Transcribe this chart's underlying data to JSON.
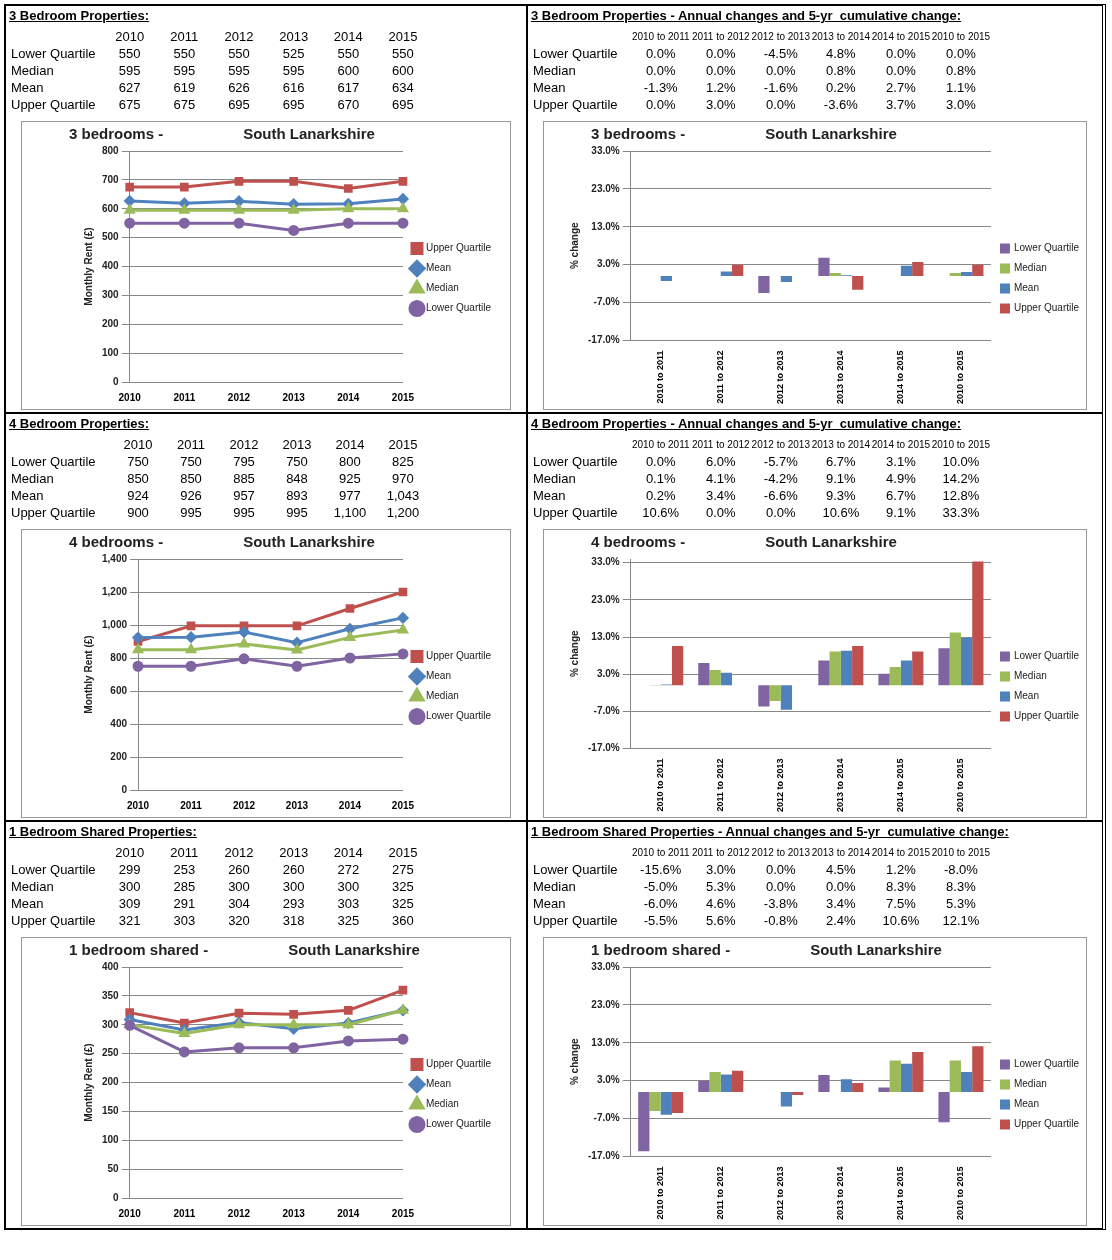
{
  "chart_data": [
    {
      "type": "line",
      "annotations": [
        "3 Bedroom Properties:"
      ],
      "title": "3 bedrooms -",
      "subtitle": "South Lanarkshire",
      "ylabel": "Monthly Rent (£)",
      "categories": [
        "2010",
        "2011",
        "2012",
        "2013",
        "2014",
        "2015"
      ],
      "ylim": [
        0,
        800
      ],
      "yticks": [
        0,
        100,
        200,
        300,
        400,
        500,
        600,
        700,
        800
      ],
      "grid": "y",
      "legend": "right",
      "data_labels": true,
      "series": [
        {
          "name": "Lower Quartile",
          "color": "#8064a2",
          "marker": "circle",
          "values": [
            550,
            550,
            550,
            525,
            550,
            550
          ],
          "value_labels": [
            "550",
            "550",
            "550",
            "525",
            "550",
            "550"
          ]
        },
        {
          "name": "Median",
          "color": "#9bbb59",
          "marker": "triangle",
          "values": [
            595,
            595,
            595,
            595,
            600,
            600
          ],
          "value_labels": [
            "595",
            "595",
            "595",
            "595",
            "600",
            "600"
          ]
        },
        {
          "name": "Mean",
          "color": "#4f81bd",
          "marker": "diamond",
          "values": [
            627,
            619,
            626,
            616,
            617,
            634
          ],
          "value_labels": [
            "627",
            "619",
            "626",
            "616",
            "617",
            "634"
          ]
        },
        {
          "name": "Upper Quartile",
          "color": "#c0504d",
          "marker": "square",
          "values": [
            675,
            675,
            695,
            695,
            670,
            695
          ],
          "value_labels": [
            "675",
            "675",
            "695",
            "695",
            "670",
            "695"
          ]
        }
      ]
    },
    {
      "type": "bar",
      "annotations": [
        "3 Bedroom Properties - Annual changes and 5-yr  cumulative change:"
      ],
      "title": "3 bedrooms -",
      "subtitle": "South Lanarkshire",
      "ylabel": "% change",
      "categories": [
        "2010 to 2011",
        "2011 to 2012",
        "2012 to 2013",
        "2013 to 2014",
        "2014 to 2015",
        "2010 to 2015"
      ],
      "ylim": [
        -17,
        33
      ],
      "yticks": [
        {
          "value": -17,
          "label": "-17.0%"
        },
        {
          "value": -7,
          "label": "-7.0%"
        },
        {
          "value": 3,
          "label": "3.0%"
        },
        {
          "value": 13,
          "label": "13.0%"
        },
        {
          "value": 23,
          "label": "23.0%"
        },
        {
          "value": 33,
          "label": "33.0%"
        }
      ],
      "grid": "y",
      "legend": "right",
      "data_labels": true,
      "series": [
        {
          "name": "Lower Quartile",
          "color": "#8064a2",
          "values": [
            0,
            0,
            -4.5,
            4.8,
            0,
            0
          ],
          "value_labels": [
            "0.0%",
            "0.0%",
            "-4.5%",
            "4.8%",
            "0.0%",
            "0.0%"
          ]
        },
        {
          "name": "Median",
          "color": "#9bbb59",
          "values": [
            0,
            0,
            0,
            0.8,
            0,
            0.8
          ],
          "value_labels": [
            "0.0%",
            "0.0%",
            "0.0%",
            "0.8%",
            "0.0%",
            "0.8%"
          ]
        },
        {
          "name": "Mean",
          "color": "#4f81bd",
          "values": [
            -1.3,
            1.2,
            -1.6,
            0.2,
            2.7,
            1.1
          ],
          "value_labels": [
            "-1.3%",
            "1.2%",
            "-1.6%",
            "0.2%",
            "2.7%",
            "1.1%"
          ]
        },
        {
          "name": "Upper Quartile",
          "color": "#c0504d",
          "values": [
            0,
            3.0,
            0,
            -3.6,
            3.7,
            3.0
          ],
          "value_labels": [
            "0.0%",
            "3.0%",
            "0.0%",
            "-3.6%",
            "3.7%",
            "3.0%"
          ]
        }
      ]
    },
    {
      "type": "line",
      "annotations": [
        "4 Bedroom Properties:"
      ],
      "title": "4 bedrooms -",
      "subtitle": "South Lanarkshire",
      "ylabel": "Monthly Rent (£)",
      "categories": [
        "2010",
        "2011",
        "2012",
        "2013",
        "2014",
        "2015"
      ],
      "ylim": [
        0,
        1400
      ],
      "yticks": [
        0,
        200,
        400,
        600,
        800,
        {
          "value": 1000,
          "label": "1,000"
        },
        {
          "value": 1200,
          "label": "1,200"
        },
        {
          "value": 1400,
          "label": "1,400"
        }
      ],
      "grid": "y",
      "legend": "right",
      "data_labels": true,
      "series": [
        {
          "name": "Lower Quartile",
          "color": "#8064a2",
          "marker": "circle",
          "values": [
            750,
            750,
            795,
            750,
            800,
            825
          ],
          "value_labels": [
            "750",
            "750",
            "795",
            "750",
            "800",
            "825"
          ]
        },
        {
          "name": "Median",
          "color": "#9bbb59",
          "marker": "triangle",
          "values": [
            850,
            850,
            885,
            848,
            925,
            970
          ],
          "value_labels": [
            "850",
            "850",
            "885",
            "848",
            "925",
            "970"
          ]
        },
        {
          "name": "Mean",
          "color": "#4f81bd",
          "marker": "diamond",
          "values": [
            924,
            926,
            957,
            893,
            977,
            1043
          ],
          "value_labels": [
            "924",
            "926",
            "957",
            "893",
            "977",
            "1,043"
          ]
        },
        {
          "name": "Upper Quartile",
          "color": "#c0504d",
          "marker": "square",
          "values": [
            900,
            995,
            995,
            995,
            1100,
            1200
          ],
          "value_labels": [
            "900",
            "995",
            "995",
            "995",
            "1,100",
            "1,200"
          ]
        }
      ]
    },
    {
      "type": "bar",
      "annotations": [
        "4 Bedroom Properties - Annual changes and 5-yr  cumulative change:"
      ],
      "title": "4 bedrooms -",
      "subtitle": "South Lanarkshire",
      "ylabel": "% change",
      "categories": [
        "2010 to 2011",
        "2011 to 2012",
        "2012 to 2013",
        "2013 to 2014",
        "2014 to 2015",
        "2010 to 2015"
      ],
      "ylim": [
        -17,
        34
      ],
      "yticks": [
        {
          "value": -17,
          "label": "-17.0%"
        },
        {
          "value": -7,
          "label": "-7.0%"
        },
        {
          "value": 3,
          "label": "3.0%"
        },
        {
          "value": 13,
          "label": "13.0%"
        },
        {
          "value": 23,
          "label": "23.0%"
        },
        {
          "value": 33,
          "label": "33.0%"
        }
      ],
      "grid": "y",
      "legend": "right",
      "data_labels": true,
      "series": [
        {
          "name": "Lower Quartile",
          "color": "#8064a2",
          "values": [
            0,
            6.0,
            -5.7,
            6.7,
            3.1,
            10.0
          ],
          "value_labels": [
            "0.0%",
            "6.0%",
            "-5.7%",
            "6.7%",
            "3.1%",
            "10.0%"
          ]
        },
        {
          "name": "Median",
          "color": "#9bbb59",
          "values": [
            0.1,
            4.1,
            -4.2,
            9.1,
            4.9,
            14.2
          ],
          "value_labels": [
            "0.1%",
            "4.1%",
            "-4.2%",
            "9.1%",
            "4.9%",
            "14.2%"
          ]
        },
        {
          "name": "Mean",
          "color": "#4f81bd",
          "values": [
            0.2,
            3.4,
            -6.6,
            9.3,
            6.7,
            12.8
          ],
          "value_labels": [
            "0.2%",
            "3.4%",
            "-6.6%",
            "9.3%",
            "6.7%",
            "12.8%"
          ]
        },
        {
          "name": "Upper Quartile",
          "color": "#c0504d",
          "values": [
            10.6,
            0,
            0,
            10.6,
            9.1,
            33.3
          ],
          "value_labels": [
            "10.6%",
            "0.0%",
            "0.0%",
            "10.6%",
            "9.1%",
            "33.3%"
          ]
        }
      ]
    },
    {
      "type": "line",
      "annotations": [
        "1 Bedroom Shared Properties:"
      ],
      "title": "1 bedroom shared -",
      "subtitle": "South Lanarkshire",
      "ylabel": "Monthly Rent (£)",
      "categories": [
        "2010",
        "2011",
        "2012",
        "2013",
        "2014",
        "2015"
      ],
      "ylim": [
        0,
        400
      ],
      "yticks": [
        0,
        50,
        100,
        150,
        200,
        250,
        300,
        350,
        400
      ],
      "grid": "y",
      "legend": "right",
      "data_labels": true,
      "series": [
        {
          "name": "Lower Quartile",
          "color": "#8064a2",
          "marker": "circle",
          "values": [
            299,
            253,
            260,
            260,
            272,
            275
          ],
          "value_labels": [
            "299",
            "253",
            "260",
            "260",
            "272",
            "275"
          ]
        },
        {
          "name": "Median",
          "color": "#9bbb59",
          "marker": "triangle",
          "values": [
            300,
            285,
            300,
            300,
            300,
            325
          ],
          "value_labels": [
            "300",
            "285",
            "300",
            "300",
            "300",
            "325"
          ]
        },
        {
          "name": "Mean",
          "color": "#4f81bd",
          "marker": "diamond",
          "values": [
            309,
            291,
            304,
            293,
            303,
            325
          ],
          "value_labels": [
            "309",
            "291",
            "304",
            "293",
            "303",
            "325"
          ]
        },
        {
          "name": "Upper Quartile",
          "color": "#c0504d",
          "marker": "square",
          "values": [
            321,
            303,
            320,
            318,
            325,
            360
          ],
          "value_labels": [
            "321",
            "303",
            "320",
            "318",
            "325",
            "360"
          ]
        }
      ]
    },
    {
      "type": "bar",
      "annotations": [
        "1 Bedroom Shared Properties - Annual changes and 5-yr  cumulative change:"
      ],
      "title": "1 bedroom shared -",
      "subtitle": "South Lanarkshire",
      "ylabel": "% change",
      "categories": [
        "2010 to 2011",
        "2011 to 2012",
        "2012 to 2013",
        "2013 to 2014",
        "2014 to 2015",
        "2010 to 2015"
      ],
      "ylim": [
        -17,
        33
      ],
      "yticks": [
        {
          "value": -17,
          "label": "-17.0%"
        },
        {
          "value": -7,
          "label": "-7.0%"
        },
        {
          "value": 3,
          "label": "3.0%"
        },
        {
          "value": 13,
          "label": "13.0%"
        },
        {
          "value": 23,
          "label": "23.0%"
        },
        {
          "value": 33,
          "label": "33.0%"
        }
      ],
      "grid": "y",
      "legend": "right",
      "data_labels": true,
      "series": [
        {
          "name": "Lower Quartile",
          "color": "#8064a2",
          "values": [
            -15.6,
            3.0,
            0,
            4.5,
            1.2,
            -8.0
          ],
          "value_labels": [
            "-15.6%",
            "3.0%",
            "0.0%",
            "4.5%",
            "1.2%",
            "-8.0%"
          ]
        },
        {
          "name": "Median",
          "color": "#9bbb59",
          "values": [
            -5.0,
            5.3,
            0,
            0,
            8.3,
            8.3
          ],
          "value_labels": [
            "-5.0%",
            "5.3%",
            "0.0%",
            "0.0%",
            "8.3%",
            "8.3%"
          ]
        },
        {
          "name": "Mean",
          "color": "#4f81bd",
          "values": [
            -6.0,
            4.6,
            -3.8,
            3.4,
            7.5,
            5.3
          ],
          "value_labels": [
            "-6.0%",
            "4.6%",
            "-3.8%",
            "3.4%",
            "7.5%",
            "5.3%"
          ]
        },
        {
          "name": "Upper Quartile",
          "color": "#c0504d",
          "values": [
            -5.5,
            5.6,
            -0.8,
            2.4,
            10.6,
            12.1
          ],
          "value_labels": [
            "-5.5%",
            "5.6%",
            "-0.8%",
            "2.4%",
            "10.6%",
            "12.1%"
          ]
        }
      ]
    }
  ]
}
